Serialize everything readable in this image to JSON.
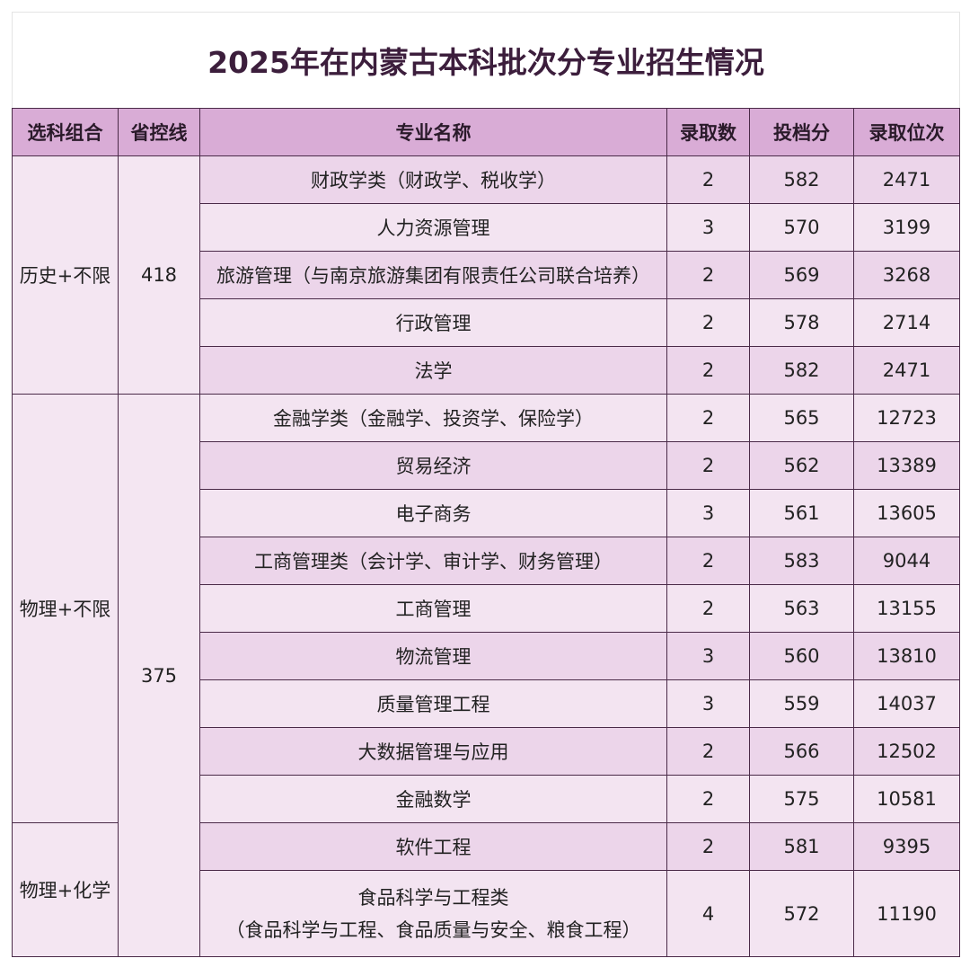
{
  "title": "2025年在内蒙古本科批次分专业招生情况",
  "table": {
    "columns": [
      "选科组合",
      "省控线",
      "专业名称",
      "录取数",
      "投档分",
      "录取位次"
    ],
    "lines": [
      {
        "line": 418,
        "groups": [
          {
            "subject": "历史+不限",
            "majors": [
              {
                "name": "财政学类（财政学、税收学）",
                "admitted": 2,
                "score": 582,
                "rank": 2471
              },
              {
                "name": "人力资源管理",
                "admitted": 3,
                "score": 570,
                "rank": 3199
              },
              {
                "name": "旅游管理（与南京旅游集团有限责任公司联合培养）",
                "admitted": 2,
                "score": 569,
                "rank": 3268
              },
              {
                "name": "行政管理",
                "admitted": 2,
                "score": 578,
                "rank": 2714
              },
              {
                "name": "法学",
                "admitted": 2,
                "score": 582,
                "rank": 2471
              }
            ]
          }
        ]
      },
      {
        "line": 375,
        "groups": [
          {
            "subject": "物理+不限",
            "majors": [
              {
                "name": "金融学类（金融学、投资学、保险学）",
                "admitted": 2,
                "score": 565,
                "rank": 12723
              },
              {
                "name": "贸易经济",
                "admitted": 2,
                "score": 562,
                "rank": 13389
              },
              {
                "name": "电子商务",
                "admitted": 3,
                "score": 561,
                "rank": 13605
              },
              {
                "name": "工商管理类（会计学、审计学、财务管理）",
                "admitted": 2,
                "score": 583,
                "rank": 9044
              },
              {
                "name": "工商管理",
                "admitted": 2,
                "score": 563,
                "rank": 13155
              },
              {
                "name": "物流管理",
                "admitted": 3,
                "score": 560,
                "rank": 13810
              },
              {
                "name": "质量管理工程",
                "admitted": 3,
                "score": 559,
                "rank": 14037
              },
              {
                "name": "大数据管理与应用",
                "admitted": 2,
                "score": 566,
                "rank": 12502
              },
              {
                "name": "金融数学",
                "admitted": 2,
                "score": 575,
                "rank": 10581
              }
            ]
          },
          {
            "subject": "物理+化学",
            "majors": [
              {
                "name": "软件工程",
                "admitted": 2,
                "score": 581,
                "rank": 9395
              },
              {
                "name": "食品科学与工程类",
                "detail": "（食品科学与工程、食品质量与安全、粮食工程）",
                "admitted": 4,
                "score": 572,
                "rank": 11190
              }
            ]
          }
        ]
      }
    ]
  }
}
